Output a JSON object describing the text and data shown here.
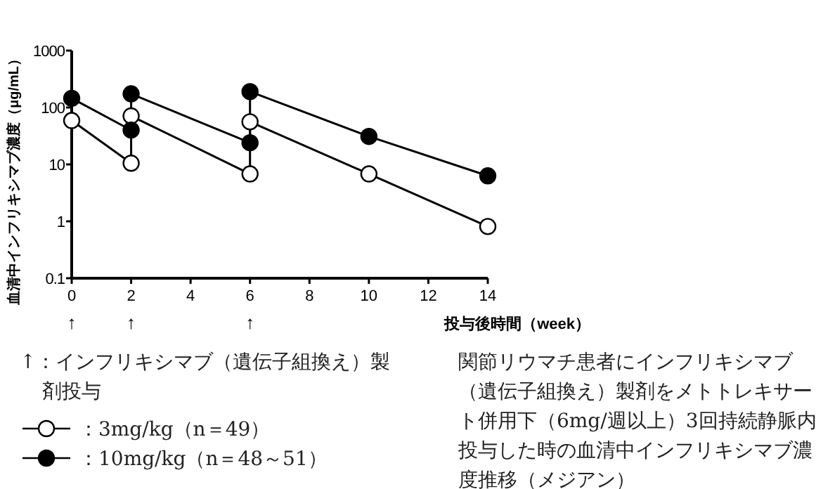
{
  "chart_data": {
    "type": "line",
    "xlabel": "投与後時間（week）",
    "ylabel": "血清中インフリキシマブ濃度（μg/mL）",
    "log": "y",
    "ylim": [
      0.1,
      1000
    ],
    "yticks": [
      0.1,
      1,
      10,
      100,
      1000
    ],
    "xlim": [
      0,
      14
    ],
    "xticks": [
      0,
      2,
      4,
      6,
      8,
      10,
      12,
      14
    ],
    "marker": "circle",
    "legend": "bottom left",
    "grid": false,
    "series": [
      {
        "name": "：3mg/kg（n＝49）",
        "color": "#ffffff",
        "x": [
          0,
          2,
          2,
          6,
          6,
          10,
          14
        ],
        "values": [
          59,
          10.5,
          71,
          6.8,
          56,
          6.8,
          0.81
        ]
      },
      {
        "name": "：10mg/kg（n＝48～51）",
        "color": "#000000",
        "x": [
          0,
          2,
          2,
          6,
          6,
          10,
          14
        ],
        "values": [
          145,
          40,
          174,
          24,
          190,
          31,
          6.3
        ]
      }
    ],
    "annotations": [
      "↑：インフリキシマブ（遺伝子組換え）製剤投与",
      "関節リウマチ患者にインフリキシマブ（遺伝子組換え）製剤をメトトレキサート併用下（6mg/週以上）3回持続静脈内投与した時の血清中インフリキシマブ濃度推移（メジアン）",
      "↑",
      "↑",
      "↑"
    ]
  }
}
